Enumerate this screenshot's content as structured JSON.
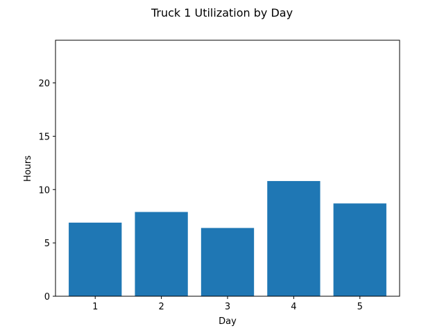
{
  "chart_data": {
    "type": "bar",
    "title": "Truck 1 Utilization by Day",
    "xlabel": "Day",
    "ylabel": "Hours",
    "categories": [
      "1",
      "2",
      "3",
      "4",
      "5"
    ],
    "values": [
      6.9,
      7.9,
      6.4,
      10.8,
      8.7
    ],
    "ylim": [
      0,
      24
    ],
    "yticks": [
      0,
      5,
      10,
      15,
      20
    ],
    "grid": false,
    "bar_color": "#1f77b4"
  }
}
